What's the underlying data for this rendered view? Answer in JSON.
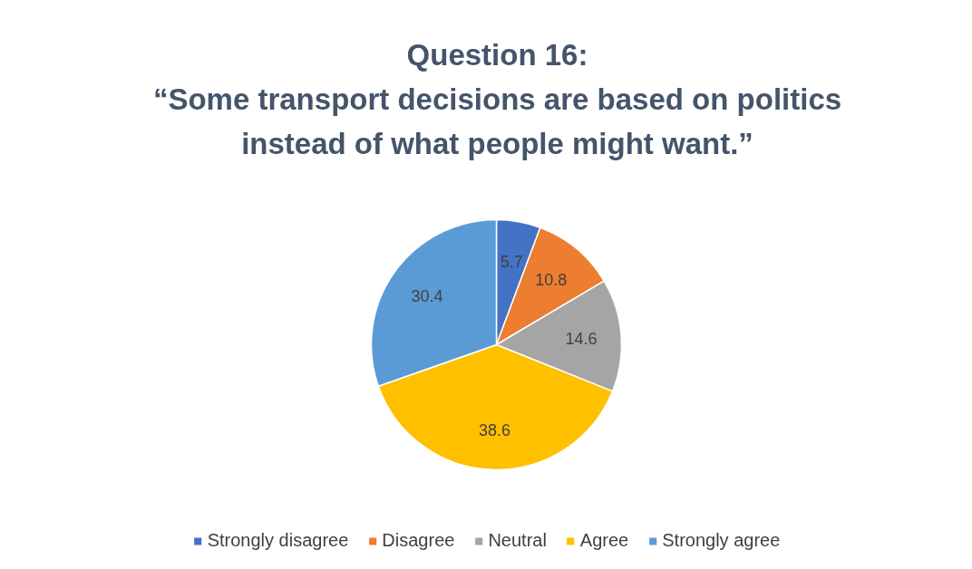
{
  "chart_data": {
    "type": "pie",
    "title": "Question 16:",
    "subtitle": "“Some transport decisions are based on politics instead of what people might want.”",
    "categories": [
      "Strongly disagree",
      "Disagree",
      "Neutral",
      "Agree",
      "Strongly agree"
    ],
    "values": [
      5.7,
      10.8,
      14.6,
      38.6,
      30.4
    ],
    "colors": [
      "#4472c4",
      "#ed7d31",
      "#a5a5a5",
      "#ffc000",
      "#5b9bd5"
    ],
    "data_labels": true,
    "legend": "bottom"
  }
}
